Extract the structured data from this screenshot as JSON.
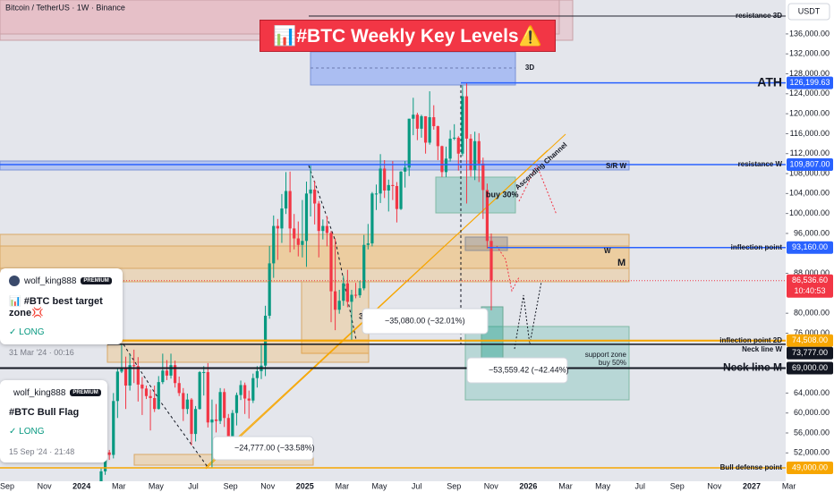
{
  "header": {
    "symbol": "Bitcoin / TetherUS · 1W · Binance",
    "currency": "USDT"
  },
  "chart_data": {
    "type": "candlestick",
    "title": "📊#BTC Weekly Key Levels⚠️",
    "up_color": "#089981",
    "down_color": "#f23645",
    "ylim": [
      46314,
      142800
    ],
    "yticks": [
      {
        "value": 136000,
        "label": "136,000.00"
      },
      {
        "value": 132000,
        "label": "132,000.00"
      },
      {
        "value": 128000,
        "label": "128,000.00"
      },
      {
        "value": 124000,
        "label": "124,000.00"
      },
      {
        "value": 120000,
        "label": "120,000.00"
      },
      {
        "value": 116000,
        "label": "116,000.00"
      },
      {
        "value": 112000,
        "label": "112,000.00"
      },
      {
        "value": 108000,
        "label": "108,000.00"
      },
      {
        "value": 104000,
        "label": "104,000.00"
      },
      {
        "value": 100000,
        "label": "100,000.00"
      },
      {
        "value": 96000,
        "label": "96,000.00"
      },
      {
        "value": 88000,
        "label": "88,000.00"
      },
      {
        "value": 80000,
        "label": "80,000.00"
      },
      {
        "value": 76000,
        "label": "76,000.00"
      },
      {
        "value": 64000,
        "label": "64,000.00"
      },
      {
        "value": 60000,
        "label": "60,000.00"
      },
      {
        "value": 56000,
        "label": "56,000.00"
      },
      {
        "value": 52000,
        "label": "52,000.00"
      }
    ],
    "x_labels": [
      "Sep",
      "Nov",
      "2024",
      "Mar",
      "May",
      "Jul",
      "Sep",
      "Nov",
      "2025",
      "Mar",
      "May",
      "Jul",
      "Sep",
      "Nov",
      "2026",
      "Mar",
      "May",
      "Jul",
      "Sep",
      "Nov",
      "2027",
      "Mar"
    ],
    "ohlc": [
      [
        42600,
        48900,
        42300,
        48300
      ],
      [
        48300,
        52800,
        47600,
        52100
      ],
      [
        52100,
        52600,
        50600,
        51600
      ],
      [
        51600,
        64000,
        50900,
        62400
      ],
      [
        62400,
        69000,
        59000,
        68300
      ],
      [
        68300,
        73700,
        68000,
        69000
      ],
      [
        69000,
        71300,
        60800,
        65500
      ],
      [
        65500,
        71800,
        64500,
        69600
      ],
      [
        69600,
        72700,
        66000,
        69400
      ],
      [
        69400,
        71200,
        62300,
        65700
      ],
      [
        65700,
        67200,
        59600,
        64900
      ],
      [
        64900,
        65500,
        62800,
        63400
      ],
      [
        63400,
        64700,
        56500,
        63000
      ],
      [
        63000,
        65500,
        60200,
        60800
      ],
      [
        60800,
        67400,
        60700,
        66200
      ],
      [
        66200,
        71900,
        65800,
        68500
      ],
      [
        68500,
        70600,
        66600,
        67500
      ],
      [
        67500,
        71900,
        66900,
        69600
      ],
      [
        69600,
        70500,
        65100,
        66000
      ],
      [
        66000,
        67300,
        63400,
        64000
      ],
      [
        64000,
        65000,
        58400,
        60800
      ],
      [
        60800,
        63900,
        59800,
        62700
      ],
      [
        62700,
        63000,
        53500,
        55800
      ],
      [
        55800,
        61400,
        54300,
        60800
      ],
      [
        60800,
        68400,
        60700,
        68200
      ],
      [
        68200,
        69400,
        63500,
        68200
      ],
      [
        68200,
        70000,
        57100,
        58100
      ],
      [
        58100,
        62700,
        49000,
        58700
      ],
      [
        58700,
        61800,
        56100,
        58400
      ],
      [
        58400,
        65000,
        57800,
        64200
      ],
      [
        64200,
        64900,
        57200,
        59000
      ],
      [
        59000,
        59800,
        52500,
        54000
      ],
      [
        54000,
        60600,
        53600,
        60000
      ],
      [
        60000,
        64100,
        57500,
        63600
      ],
      [
        63600,
        66500,
        62600,
        65600
      ],
      [
        65600,
        66100,
        59800,
        62900
      ],
      [
        62900,
        64500,
        58900,
        62500
      ],
      [
        62500,
        67900,
        62000,
        67000
      ],
      [
        67000,
        69400,
        65100,
        68400
      ],
      [
        68400,
        73600,
        66800,
        69500
      ],
      [
        69500,
        81500,
        67400,
        79500
      ],
      [
        79500,
        93500,
        78900,
        90000
      ],
      [
        90000,
        99600,
        87100,
        97500
      ],
      [
        97500,
        98900,
        90700,
        97000
      ],
      [
        97000,
        103900,
        94100,
        101000
      ],
      [
        101000,
        108300,
        99900,
        104500
      ],
      [
        104500,
        108400,
        92200,
        97000
      ],
      [
        97000,
        99900,
        92800,
        95000
      ],
      [
        95000,
        98400,
        91400,
        93700
      ],
      [
        93700,
        102700,
        91200,
        94500
      ],
      [
        94500,
        106400,
        89300,
        104000
      ],
      [
        104000,
        109600,
        99400,
        104800
      ],
      [
        104800,
        106500,
        97800,
        102000
      ],
      [
        102000,
        102500,
        91200,
        96500
      ],
      [
        96500,
        98800,
        94800,
        97500
      ],
      [
        97500,
        99500,
        93400,
        96100
      ],
      [
        96100,
        96500,
        78200,
        84400
      ],
      [
        84400,
        95000,
        76600,
        80700
      ],
      [
        80700,
        84700,
        79900,
        82500
      ],
      [
        82500,
        87500,
        81500,
        86000
      ],
      [
        86000,
        88700,
        81200,
        82300
      ],
      [
        82300,
        84700,
        74500,
        83700
      ],
      [
        83700,
        86100,
        83000,
        83600
      ],
      [
        83600,
        86500,
        83100,
        85000
      ],
      [
        85000,
        95700,
        84600,
        93700
      ],
      [
        93700,
        97900,
        92800,
        94000
      ],
      [
        94000,
        104300,
        93400,
        104000
      ],
      [
        104000,
        105800,
        100700,
        104000
      ],
      [
        104000,
        111900,
        102100,
        109000
      ],
      [
        109000,
        110700,
        103100,
        104600
      ],
      [
        104600,
        106800,
        100400,
        105700
      ],
      [
        105700,
        110500,
        102700,
        105500
      ],
      [
        105500,
        106300,
        98200,
        100900
      ],
      [
        100900,
        108500,
        100700,
        108400
      ],
      [
        108400,
        110500,
        105200,
        109200
      ],
      [
        109200,
        119000,
        107500,
        119000
      ],
      [
        119000,
        123200,
        115700,
        119800
      ],
      [
        119800,
        120200,
        114700,
        117000
      ],
      [
        117000,
        119800,
        115200,
        119500
      ],
      [
        119500,
        119500,
        112000,
        114200
      ],
      [
        114200,
        124500,
        113800,
        119300
      ],
      [
        119300,
        121700,
        116800,
        117500
      ],
      [
        117500,
        117600,
        110700,
        113500
      ],
      [
        113500,
        113600,
        107300,
        108300
      ],
      [
        108300,
        113400,
        107300,
        111000
      ],
      [
        111000,
        116700,
        110400,
        115000
      ],
      [
        115000,
        117900,
        114700,
        115200
      ],
      [
        115200,
        115500,
        108600,
        112000
      ],
      [
        112000,
        125700,
        111500,
        123500
      ],
      [
        123500,
        126199,
        102000,
        115000
      ],
      [
        115000,
        115900,
        107400,
        108700
      ],
      [
        108700,
        116400,
        106700,
        114500
      ],
      [
        114500,
        116100,
        106300,
        110000
      ],
      [
        110000,
        111200,
        98900,
        104700
      ],
      [
        104700,
        106000,
        93000,
        94500
      ],
      [
        94500,
        96000,
        80600,
        86536.6
      ]
    ],
    "levels": [
      {
        "name": "resistance 3D",
        "value": 139600,
        "color": "#131722"
      },
      {
        "name": "ATH",
        "value": 126199.63,
        "value_label": "126,199.63",
        "color": "#2962ff"
      },
      {
        "name": "resistance W",
        "value": 109807,
        "value_label": "109,807.00",
        "color": "#2962ff"
      },
      {
        "name": "inflection point",
        "value": 93160,
        "value_label": "93,160.00",
        "color": "#2962ff"
      },
      {
        "name": "inflection point 2D",
        "value": 74508,
        "value_label": "74,508.00",
        "color": "#f7a600"
      },
      {
        "name": "Neck line W",
        "value": 73777,
        "value_label": "73,777.00",
        "color": "#131722"
      },
      {
        "name": "Neck line M",
        "value": 69000,
        "value_label": "69,000.00",
        "color": "#131722"
      },
      {
        "name": "Bull defense point",
        "value": 49000,
        "value_label": "49,000.00",
        "color": "#f7a600"
      }
    ],
    "last_price": {
      "value": 86536.6,
      "label": "86,536.60",
      "countdown": "10:40:53"
    },
    "annotations": {
      "sr_w": "S/R W",
      "buy_30": "buy 30%",
      "box_3d": "3D",
      "w": "W",
      "m": "M",
      "support_zone": "support zone",
      "buy_50": "buy 50%",
      "channel": "Ascending Channel",
      "wave_3": "3",
      "measures": [
        "−35,080.00 (−32.01%)",
        "−53,559.42 (−42.44%)",
        "−24,777.00 (−33.58%)"
      ]
    }
  },
  "ideas": [
    {
      "author": "wolf_king888",
      "badge": "PREMIUM",
      "title": "📊 #BTC best target zone💢",
      "direction": "✓ LONG",
      "date": "31 Mar '24 · 00:16"
    },
    {
      "author": "wolf_king888",
      "badge": "PREMIUM",
      "title": "#BTC Bull Flag",
      "direction": "✓ LONG",
      "date": "15 Sep '24 · 21:48"
    }
  ]
}
